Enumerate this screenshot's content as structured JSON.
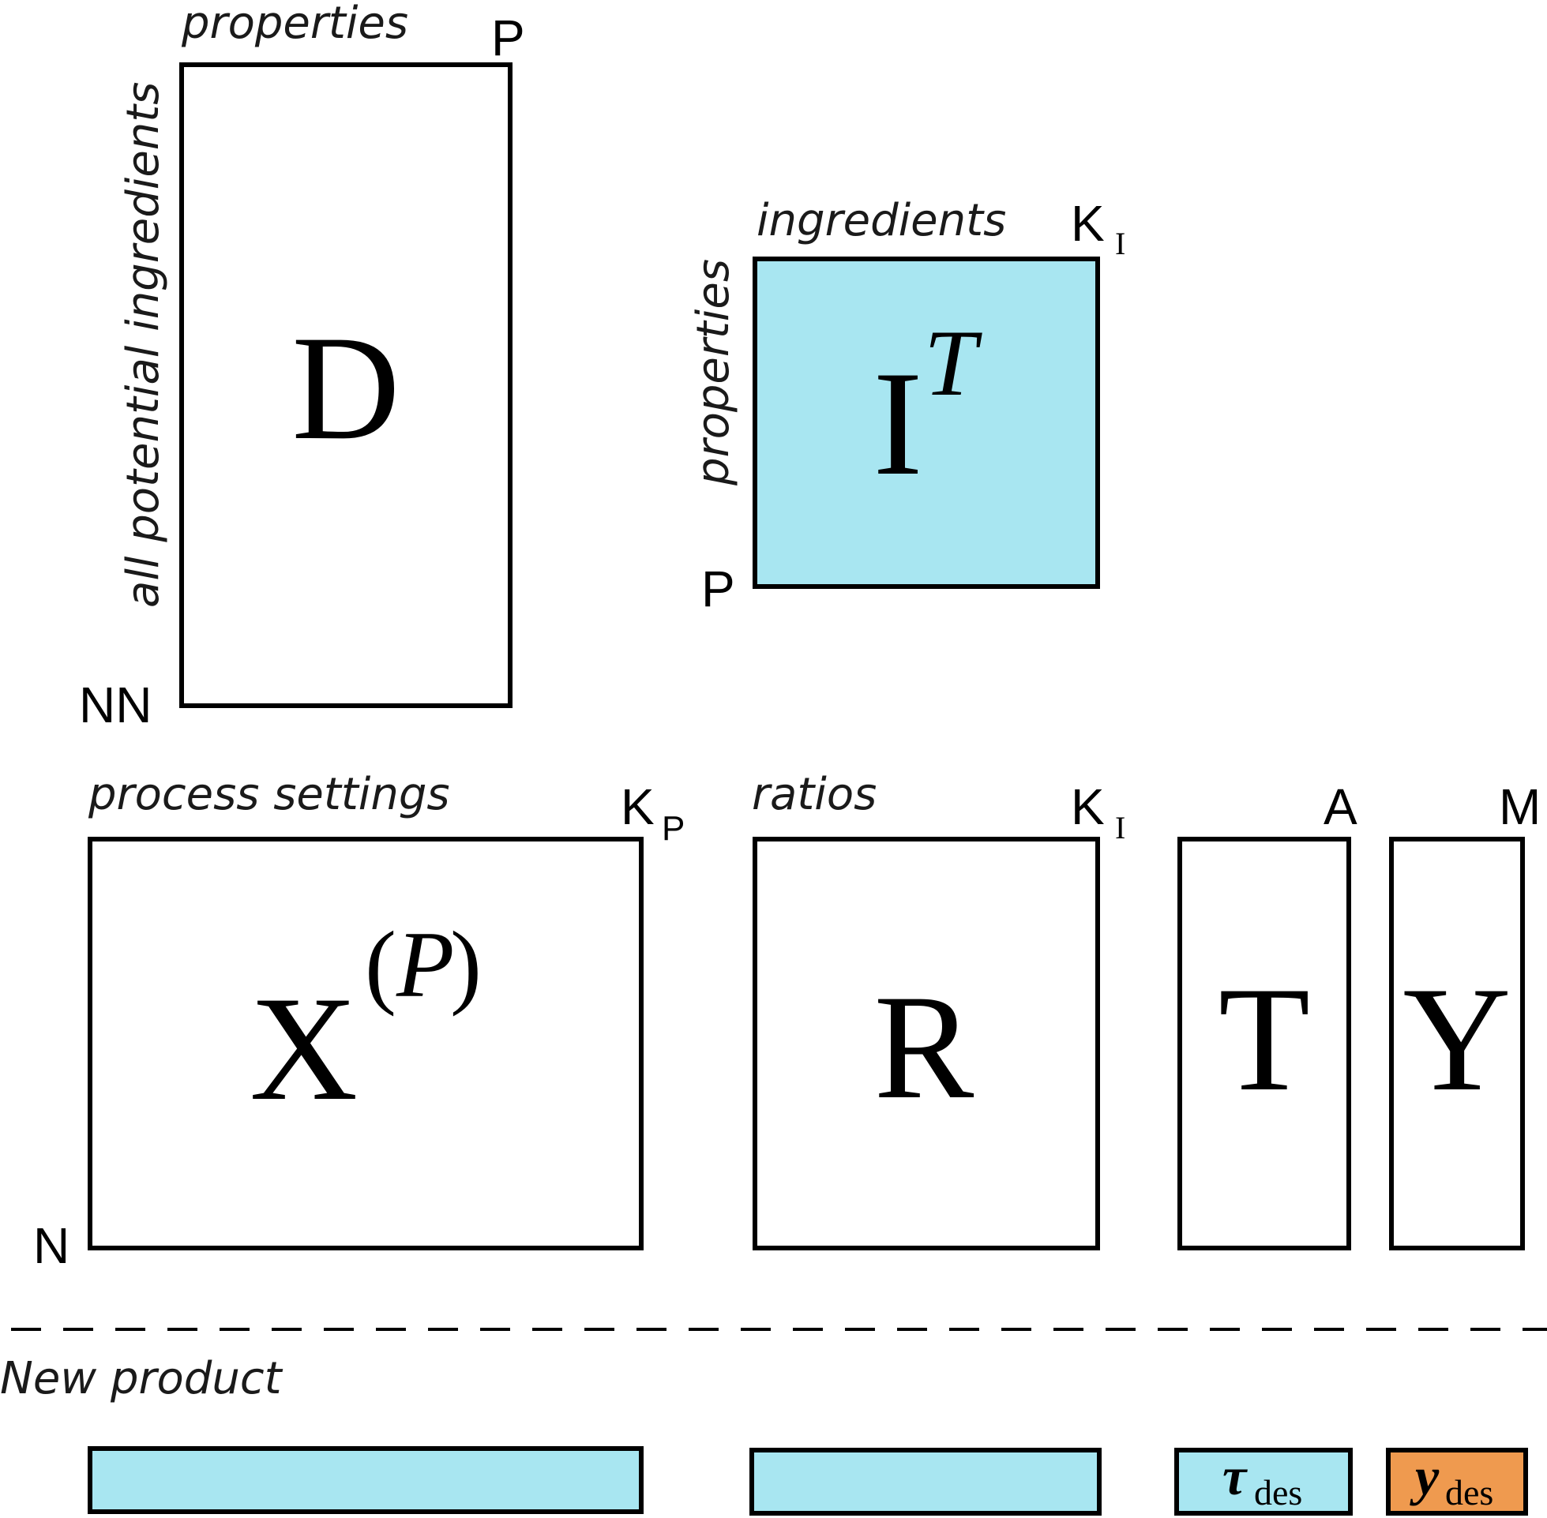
{
  "colors": {
    "cyan": "#a8e6f1",
    "orange": "#ef9a4f",
    "stroke": "#000000"
  },
  "matrix_D": {
    "symbol": "D",
    "top_label": "properties",
    "top_dim": "P",
    "side_label": "all potential ingredients",
    "bottom_dim": "NN"
  },
  "matrix_IT": {
    "symbol": "I",
    "superscript": "T",
    "top_label": "ingredients",
    "top_dim": "K",
    "top_dim_sub": "I",
    "side_label": "properties",
    "bottom_dim": "P"
  },
  "matrix_XP": {
    "symbol": "X",
    "sup_open": "(",
    "sup_var": "P",
    "sup_close": ")",
    "top_label": "process settings",
    "top_dim": "K",
    "top_dim_sub": "P",
    "bottom_dim": "N"
  },
  "matrix_R": {
    "symbol": "R",
    "top_label": "ratios",
    "top_dim": "K",
    "top_dim_sub": "I"
  },
  "matrix_T": {
    "symbol": "T",
    "top_dim": "A"
  },
  "matrix_Y": {
    "symbol": "Y",
    "top_dim": "M"
  },
  "new_product": {
    "label": "New product",
    "tau_symbol": "τ",
    "tau_sub": "des",
    "y_symbol": "y",
    "y_sub": "des"
  }
}
